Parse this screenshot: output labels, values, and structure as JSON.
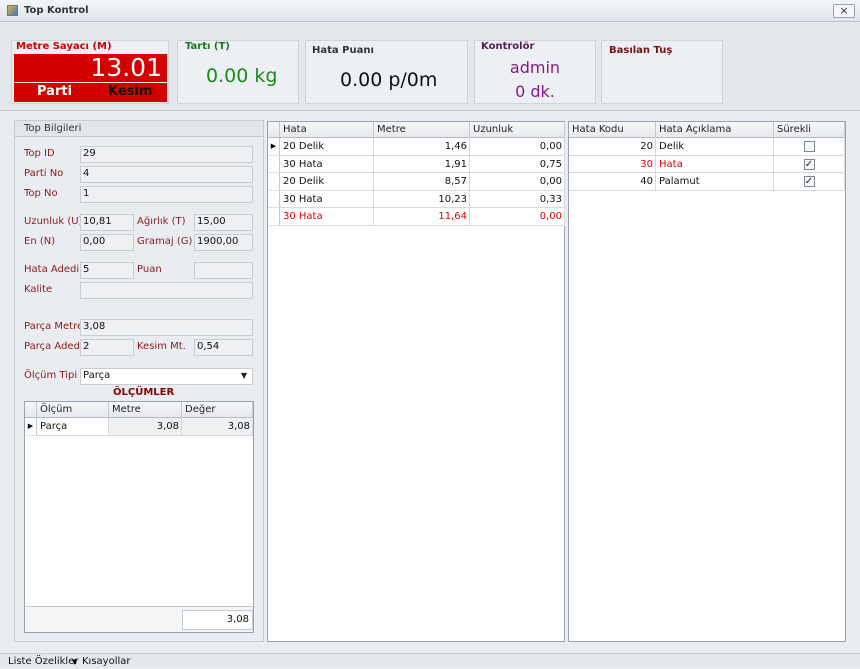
{
  "window": {
    "title": "Top Kontrol"
  },
  "meter": {
    "label": "Metre Sayacı (M)",
    "value": "13.01",
    "left": "Parti",
    "right": "Kesim"
  },
  "scale": {
    "label": "Tartı  (T)",
    "value": "0.00 kg"
  },
  "fault_score": {
    "label": "Hata Puanı",
    "value": "0.00  p/0m"
  },
  "controller": {
    "label": "Kontrolör",
    "name": "admin",
    "time": "0 dk."
  },
  "pressed_key": {
    "label": "Basılan Tuş"
  },
  "top_info": {
    "title": "Top Bilgileri",
    "fields": [
      {
        "label": "Top ID",
        "value": "29"
      },
      {
        "label": "Parti No",
        "value": "4"
      },
      {
        "label": "Top No",
        "value": "1"
      },
      {
        "label": "Uzunluk (U)",
        "value": "10,81"
      },
      {
        "label": "Ağırlık (T)",
        "value": "15,00"
      },
      {
        "label": "En (N)",
        "value": "0,00"
      },
      {
        "label": "Gramaj (G)",
        "value": "1900,00"
      },
      {
        "label": "Hata Adedi",
        "value": "5"
      },
      {
        "label": "Puan"
      },
      {
        "label": "Kalite"
      },
      {
        "label": "Parça Metresi",
        "value": "3,08"
      },
      {
        "label": "Parça Adedi",
        "value": "2"
      },
      {
        "label": "Kesim Mt.",
        "value": "0,54"
      },
      {
        "label": "Ölçüm Tipi",
        "value": "Parça"
      }
    ]
  },
  "measurements": {
    "title": "ÖLÇÜMLER",
    "columns": [
      "Ölçüm",
      "Metre",
      "Değer"
    ],
    "rows": [
      {
        "cells": [
          "Parça",
          "3,08",
          "3,08"
        ]
      }
    ],
    "total": "3,08"
  },
  "faults_grid": {
    "columns": [
      "Hata",
      "Metre",
      "Uzunluk"
    ],
    "rows": [
      {
        "cells": [
          "20 Delik",
          "1,46",
          "0,00"
        ]
      },
      {
        "cells": [
          "30 Hata",
          "1,91",
          "0,75"
        ]
      },
      {
        "cells": [
          "20 Delik",
          "8,57",
          "0,00"
        ]
      },
      {
        "cells": [
          "30 Hata",
          "10,23",
          "0,33"
        ]
      },
      {
        "cells": [
          "30 Hata",
          "11,64",
          "0,00"
        ],
        "color": "#e00000"
      }
    ]
  },
  "codes_grid": {
    "columns": [
      "Hata Kodu",
      "Hata Açıklama",
      "Sürekli"
    ],
    "rows": [
      {
        "cells": [
          "20",
          "Delik"
        ],
        "continuous": false
      },
      {
        "cells": [
          "30",
          "Hata"
        ],
        "continuous": true,
        "color": "#e00000"
      },
      {
        "cells": [
          "40",
          "Palamut"
        ],
        "continuous": true
      }
    ]
  },
  "status_bar": {
    "items": [
      "Liste Özelikler",
      "Kısayollar"
    ]
  }
}
